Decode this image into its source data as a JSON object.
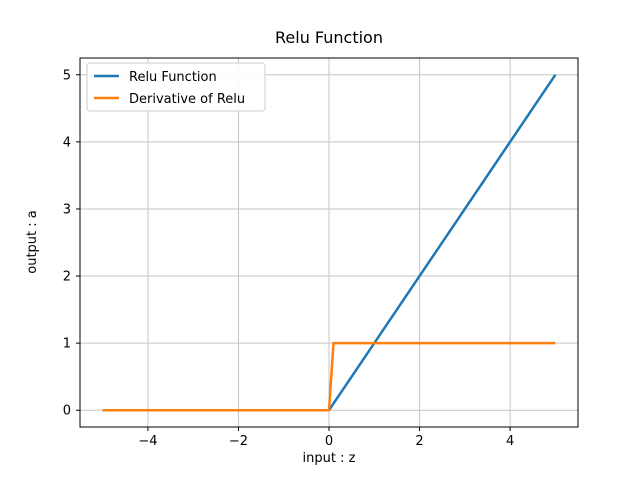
{
  "figure": {
    "background_color": "#ffffff",
    "text_color": "#000000"
  },
  "chart_data": {
    "type": "line",
    "title": "Relu Function",
    "xlabel": "input : z",
    "ylabel": "output : a",
    "xlim": [
      -5.5,
      5.5
    ],
    "ylim": [
      -0.25,
      5.25
    ],
    "xticks": [
      -4,
      -2,
      0,
      2,
      4
    ],
    "yticks": [
      0,
      1,
      2,
      3,
      4,
      5
    ],
    "grid": true,
    "grid_color": "#c6c6c6",
    "legend_position": "upper left",
    "series": [
      {
        "name": "Relu Function",
        "color": "#1f77b4",
        "points": [
          [
            -5,
            0
          ],
          [
            0,
            0
          ],
          [
            5,
            5
          ]
        ]
      },
      {
        "name": "Derivative of Relu",
        "color": "#ff7f0e",
        "points": [
          [
            -5,
            0
          ],
          [
            0,
            0
          ],
          [
            0.1,
            1
          ],
          [
            5,
            1
          ]
        ]
      }
    ]
  }
}
